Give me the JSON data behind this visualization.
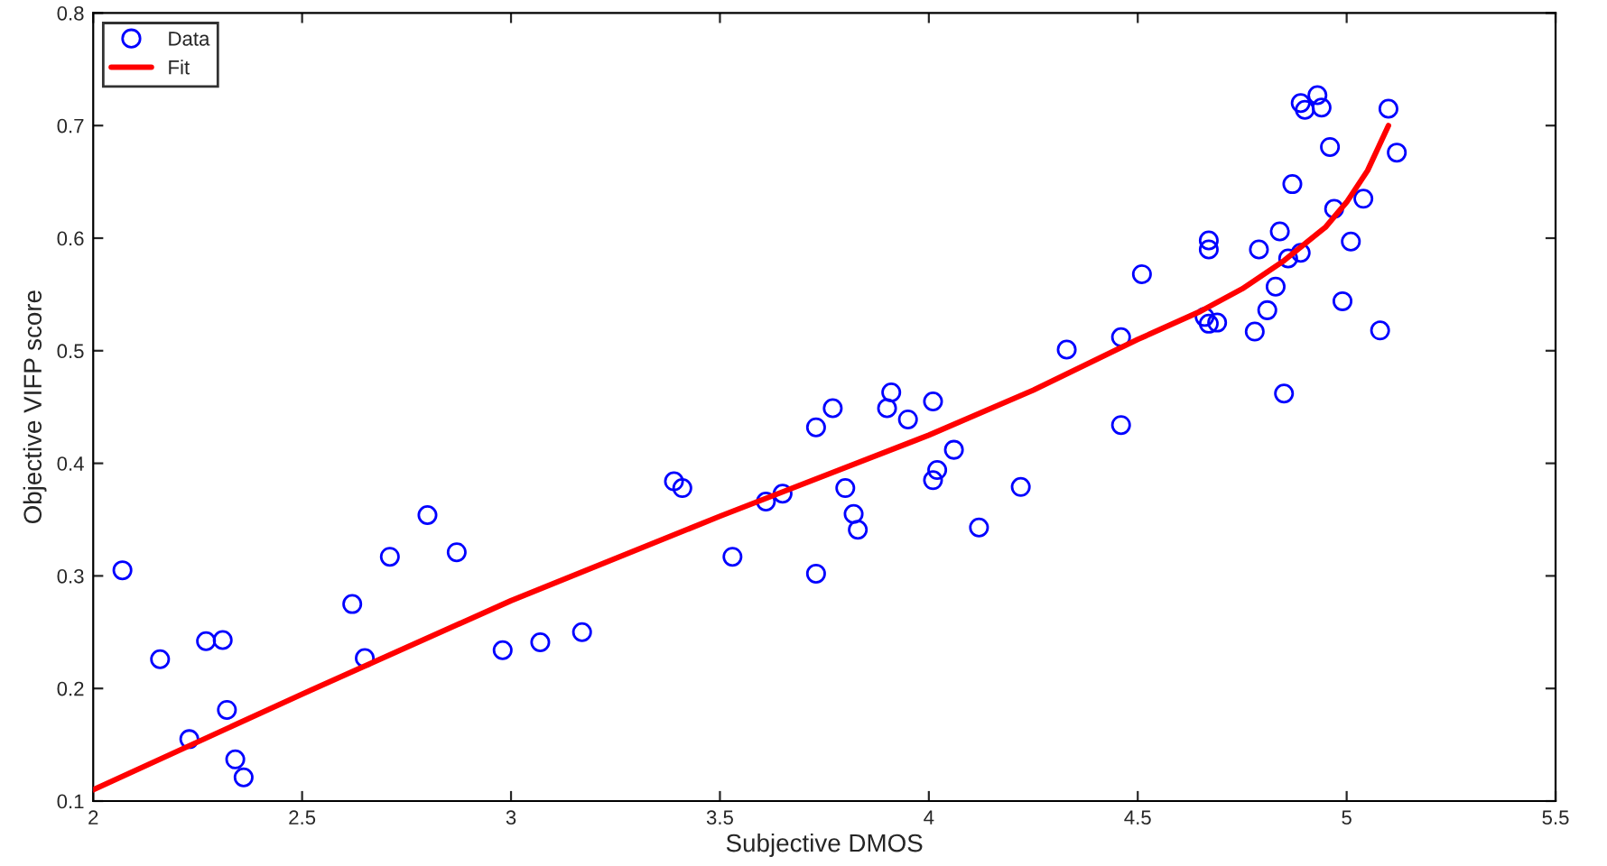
{
  "chart_data": {
    "type": "scatter",
    "xlabel": "Subjective DMOS",
    "ylabel": "Objective VIFP score",
    "xlim": [
      2,
      5.5
    ],
    "ylim": [
      0.1,
      0.8
    ],
    "xticks": [
      2,
      2.5,
      3,
      3.5,
      4,
      4.5,
      5,
      5.5
    ],
    "yticks": [
      0.1,
      0.2,
      0.3,
      0.4,
      0.5,
      0.6,
      0.7,
      0.8
    ],
    "grid": false,
    "legend": "top left",
    "series": [
      {
        "name": "Data",
        "marker": "circle",
        "color": "#0000ff",
        "x": [
          2.07,
          2.16,
          2.23,
          2.27,
          2.31,
          2.32,
          2.34,
          2.36,
          2.62,
          2.65,
          2.71,
          2.8,
          2.87,
          2.98,
          3.07,
          3.17,
          3.39,
          3.41,
          3.53,
          3.61,
          3.65,
          3.73,
          3.73,
          3.77,
          3.8,
          3.82,
          3.83,
          3.9,
          3.91,
          3.95,
          4.01,
          4.01,
          4.02,
          4.06,
          4.12,
          4.22,
          4.33,
          4.46,
          4.46,
          4.51,
          4.66,
          4.67,
          4.67,
          4.67,
          4.69,
          4.78,
          4.79,
          4.81,
          4.83,
          4.84,
          4.85,
          4.86,
          4.87,
          4.89,
          4.89,
          4.9,
          4.93,
          4.94,
          4.96,
          4.97,
          4.99,
          5.01,
          5.04,
          5.08,
          5.1,
          5.12
        ],
        "values": [
          0.305,
          0.226,
          0.155,
          0.242,
          0.243,
          0.181,
          0.137,
          0.121,
          0.275,
          0.227,
          0.317,
          0.354,
          0.321,
          0.234,
          0.241,
          0.25,
          0.384,
          0.378,
          0.317,
          0.366,
          0.373,
          0.432,
          0.302,
          0.449,
          0.378,
          0.355,
          0.341,
          0.449,
          0.463,
          0.439,
          0.455,
          0.385,
          0.394,
          0.412,
          0.343,
          0.379,
          0.501,
          0.512,
          0.434,
          0.568,
          0.53,
          0.598,
          0.59,
          0.524,
          0.525,
          0.517,
          0.59,
          0.536,
          0.557,
          0.606,
          0.462,
          0.582,
          0.648,
          0.587,
          0.72,
          0.714,
          0.727,
          0.716,
          0.681,
          0.626,
          0.544,
          0.597,
          0.635,
          0.518,
          0.715,
          0.676
        ]
      },
      {
        "name": "Fit",
        "type": "line",
        "marker": "none",
        "line_style": "solid",
        "color": "#ff0000",
        "x": [
          2,
          2.5,
          3,
          3.5,
          4,
          4.25,
          4.5,
          4.65,
          4.75,
          4.85,
          4.95,
          5,
          5.05,
          5.1
        ],
        "values": [
          0.11,
          0.195,
          0.278,
          0.353,
          0.425,
          0.465,
          0.51,
          0.535,
          0.555,
          0.58,
          0.61,
          0.632,
          0.66,
          0.7
        ]
      }
    ]
  }
}
